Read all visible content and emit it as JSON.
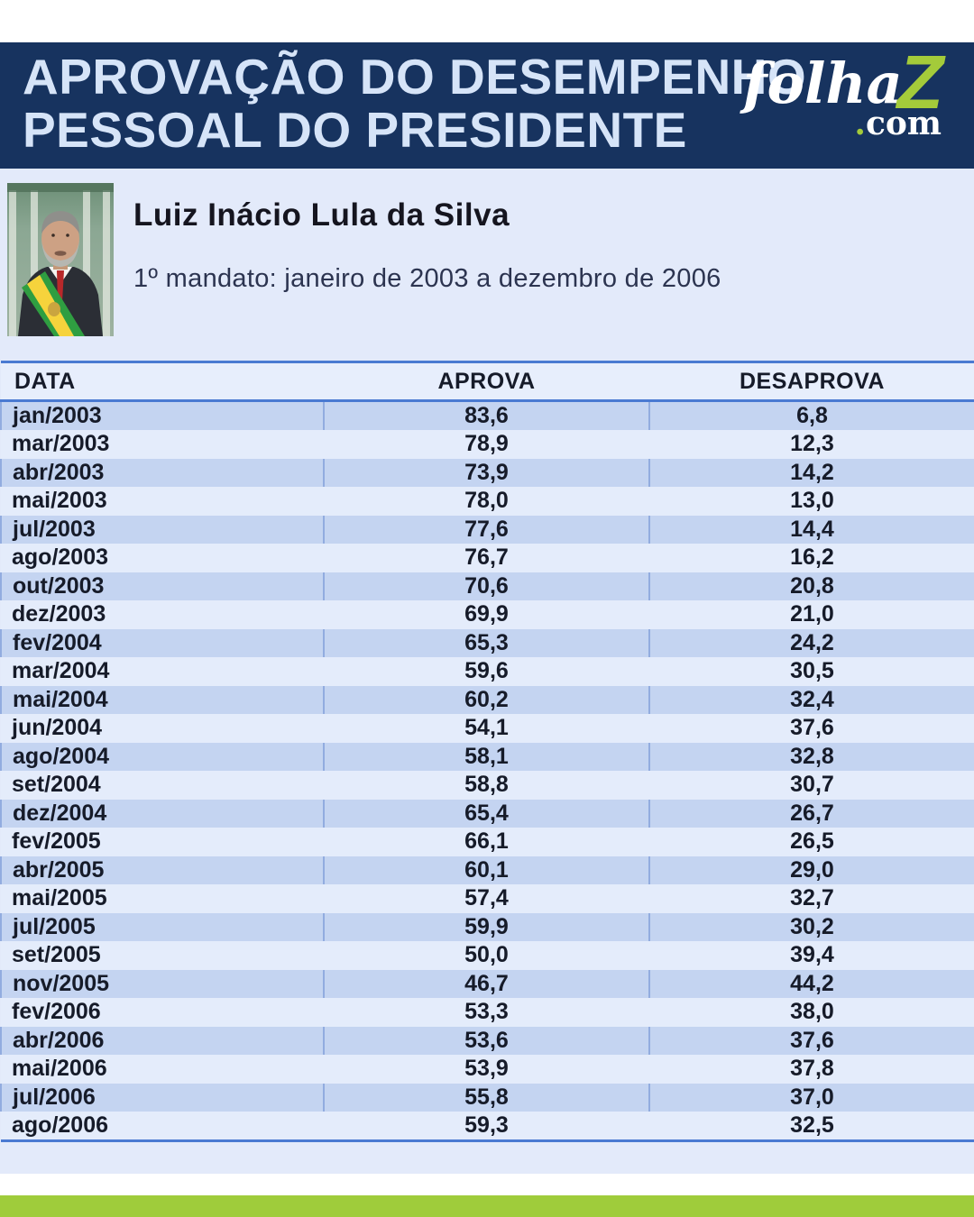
{
  "banner": {
    "title_line1": "APROVAÇÃO DO DESEMPENHO",
    "title_line2": "PESSOAL DO PRESIDENTE"
  },
  "logo": {
    "word": "folha",
    "z_letter": "Z",
    "dot": ".",
    "com": "com"
  },
  "profile": {
    "name": "Luiz Inácio Lula da Silva",
    "term": "1º mandato: janeiro de 2003 a dezembro de 2006"
  },
  "table": {
    "columns": [
      "DATA",
      "APROVA",
      "DESAPROVA"
    ],
    "rows": [
      [
        "jan/2003",
        "83,6",
        "6,8"
      ],
      [
        "mar/2003",
        "78,9",
        "12,3"
      ],
      [
        "abr/2003",
        "73,9",
        "14,2"
      ],
      [
        "mai/2003",
        "78,0",
        "13,0"
      ],
      [
        "jul/2003",
        "77,6",
        "14,4"
      ],
      [
        "ago/2003",
        "76,7",
        "16,2"
      ],
      [
        "out/2003",
        "70,6",
        "20,8"
      ],
      [
        "dez/2003",
        "69,9",
        "21,0"
      ],
      [
        "fev/2004",
        "65,3",
        "24,2"
      ],
      [
        "mar/2004",
        "59,6",
        "30,5"
      ],
      [
        "mai/2004",
        "60,2",
        "32,4"
      ],
      [
        "jun/2004",
        "54,1",
        "37,6"
      ],
      [
        "ago/2004",
        "58,1",
        "32,8"
      ],
      [
        "set/2004",
        "58,8",
        "30,7"
      ],
      [
        "dez/2004",
        "65,4",
        "26,7"
      ],
      [
        "fev/2005",
        "66,1",
        "26,5"
      ],
      [
        "abr/2005",
        "60,1",
        "29,0"
      ],
      [
        "mai/2005",
        "57,4",
        "32,7"
      ],
      [
        "jul/2005",
        "59,9",
        "30,2"
      ],
      [
        "set/2005",
        "50,0",
        "39,4"
      ],
      [
        "nov/2005",
        "46,7",
        "44,2"
      ],
      [
        "fev/2006",
        "53,3",
        "38,0"
      ],
      [
        "abr/2006",
        "53,6",
        "37,6"
      ],
      [
        "mai/2006",
        "53,9",
        "37,8"
      ],
      [
        "jul/2006",
        "55,8",
        "37,0"
      ],
      [
        "ago/2006",
        "59,3",
        "32,5"
      ]
    ]
  },
  "colors": {
    "banner_bg": "#17335f",
    "banner_title": "#d6e4f8",
    "page_bg": "#e3eafa",
    "row_dark": "#c4d4f1",
    "row_light": "#e4ecfb",
    "header_row_bg": "#e7eefc",
    "table_border": "#4a7ad2",
    "cell_divider": "#92acdf",
    "text_dark": "#161b29",
    "green_bar": "#9fcc3b",
    "logo_green": "#a4cb3a"
  },
  "chart_data": {
    "type": "table",
    "title": "Aprovação do desempenho pessoal do presidente",
    "subject": "Luiz Inácio Lula da Silva",
    "period": "1º mandato: janeiro de 2003 a dezembro de 2006",
    "columns": [
      "DATA",
      "APROVA",
      "DESAPROVA"
    ],
    "categories": [
      "jan/2003",
      "mar/2003",
      "abr/2003",
      "mai/2003",
      "jul/2003",
      "ago/2003",
      "out/2003",
      "dez/2003",
      "fev/2004",
      "mar/2004",
      "mai/2004",
      "jun/2004",
      "ago/2004",
      "set/2004",
      "dez/2004",
      "fev/2005",
      "abr/2005",
      "mai/2005",
      "jul/2005",
      "set/2005",
      "nov/2005",
      "fev/2006",
      "abr/2006",
      "mai/2006",
      "jul/2006",
      "ago/2006"
    ],
    "series": [
      {
        "name": "APROVA",
        "values": [
          83.6,
          78.9,
          73.9,
          78.0,
          77.6,
          76.7,
          70.6,
          69.9,
          65.3,
          59.6,
          60.2,
          54.1,
          58.1,
          58.8,
          65.4,
          66.1,
          60.1,
          57.4,
          59.9,
          50.0,
          46.7,
          53.3,
          53.6,
          53.9,
          55.8,
          59.3
        ]
      },
      {
        "name": "DESAPROVA",
        "values": [
          6.8,
          12.3,
          14.2,
          13.0,
          14.4,
          16.2,
          20.8,
          21.0,
          24.2,
          30.5,
          32.4,
          37.6,
          32.8,
          30.7,
          26.7,
          26.5,
          29.0,
          32.7,
          30.2,
          39.4,
          44.2,
          38.0,
          37.6,
          37.8,
          37.0,
          32.5
        ]
      }
    ]
  }
}
